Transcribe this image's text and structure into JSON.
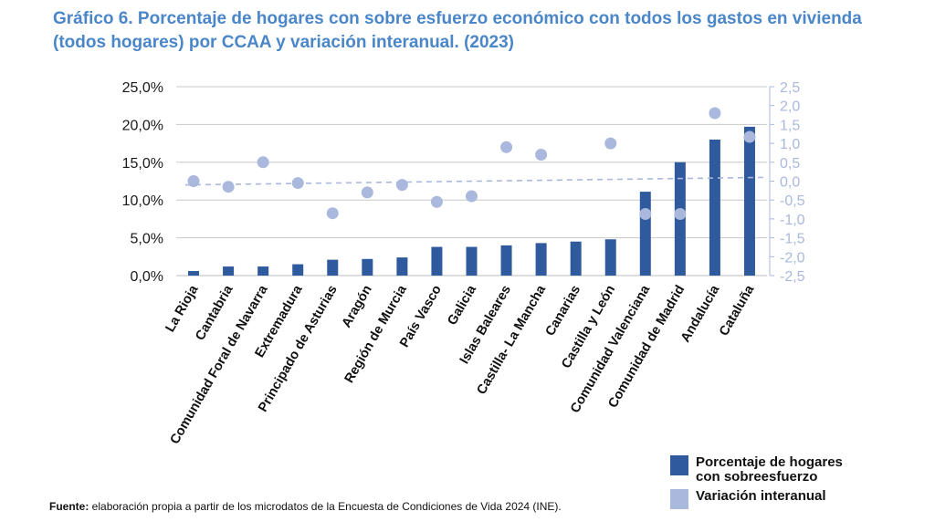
{
  "title": {
    "line1": "Gráfico 6. Porcentaje de hogares con sobre esfuerzo económico con todos los gastos en vivienda",
    "line2": "(todos hogares) por CCAA y variación interanual. (2023)"
  },
  "colors": {
    "title": "#4a86c8",
    "bars": "#2f5a9e",
    "dots": "#a9b8dc",
    "grid": "#c8c8c8"
  },
  "chart_data": {
    "type": "bar",
    "categories": [
      "La Rioja",
      "Cantabria",
      "Comunidad Foral de Navarra",
      "Extremadura",
      "Principado de Asturias",
      "Aragón",
      "Región de Murcia",
      "País Vasco",
      "Galicia",
      "Islas Baleares",
      "Castilla- La Mancha",
      "Canarias",
      "Castilla y León",
      "Comunidad Valenciana",
      "Comunidad de Madrid",
      "Andalucía",
      "Cataluña"
    ],
    "series": [
      {
        "name": "Porcentaje de hogares con sobreesfuerzo",
        "type": "bar",
        "axis": "left",
        "values": [
          0.6,
          1.2,
          1.2,
          1.5,
          2.1,
          2.2,
          2.4,
          3.8,
          3.8,
          4.0,
          4.3,
          4.5,
          4.8,
          11.1,
          15.0,
          18.0,
          19.7
        ]
      },
      {
        "name": "Variación interanual",
        "type": "scatter",
        "axis": "right",
        "values": [
          0.0,
          -0.15,
          0.5,
          -0.05,
          -0.85,
          -0.3,
          -0.1,
          -0.55,
          -0.4,
          0.9,
          0.7,
          null,
          1.0,
          -0.87,
          -0.87,
          1.8,
          1.17
        ]
      }
    ],
    "reference_line": {
      "axis": "right",
      "from": -0.1,
      "to": 0.1,
      "style": "dashed"
    },
    "y_left": {
      "ylim": [
        0,
        25
      ],
      "ticks": [
        "0,0%",
        "5,0%",
        "10,0%",
        "15,0%",
        "20,0%",
        "25,0%"
      ],
      "tick_values": [
        0,
        5,
        10,
        15,
        20,
        25
      ]
    },
    "y_right": {
      "ylim": [
        -2.5,
        2.5
      ],
      "ticks": [
        "-2,5",
        "-2,0",
        "-1,5",
        "-1,0",
        "-0,5",
        "0,0",
        "0,5",
        "1,0",
        "1,5",
        "2,0",
        "2,5"
      ],
      "tick_values": [
        -2.5,
        -2.0,
        -1.5,
        -1.0,
        -0.5,
        0.0,
        0.5,
        1.0,
        1.5,
        2.0,
        2.5
      ]
    },
    "grid": true,
    "legend_position": "bottom-right"
  },
  "legend": [
    {
      "label": "Porcentaje de hogares con sobreesfuerzo",
      "color": "#2f5a9e"
    },
    {
      "label": "Variación interanual",
      "color": "#a9b8dc"
    }
  ],
  "source": {
    "prefix": "Fuente:",
    "text": " elaboración propia a partir de los microdatos de la Encuesta de Condiciones de Vida 2024 (INE)."
  }
}
